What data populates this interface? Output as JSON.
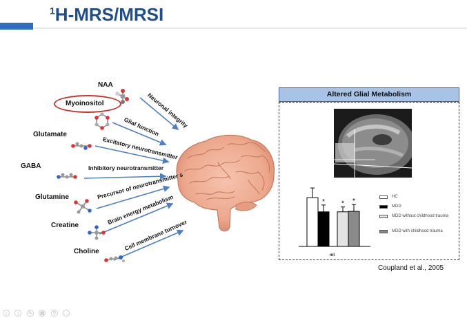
{
  "slide": {
    "title_sup": "1",
    "title_main": "H-MRS/MRSI"
  },
  "metabolites": [
    {
      "name": "NAA",
      "function": "Neuronal integrity"
    },
    {
      "name": "Myoinositol",
      "function": "Glial function"
    },
    {
      "name": "Glutamate",
      "function": "Excitatory neurotransmitter"
    },
    {
      "name": "GABA",
      "function": "Inhibitory neurotransmitter"
    },
    {
      "name": "Glutamine",
      "function": "Precursor of neurotransmitter s"
    },
    {
      "name": "Creatine",
      "function": "Brain energy metabolism"
    },
    {
      "name": "Choline",
      "function": "Cell membrane turnover"
    }
  ],
  "panel": {
    "header": "Altered Glial Metabolism",
    "xlabel": "mI",
    "significance_mark": "*"
  },
  "chart_data": {
    "type": "bar",
    "categories": [
      "mI"
    ],
    "series": [
      {
        "name": "HC",
        "values": [
          1.0
        ],
        "error": [
          0.2
        ],
        "color": "#ffffff"
      },
      {
        "name": "MDD",
        "values": [
          0.71
        ],
        "error": [
          0.14
        ],
        "color": "#000000"
      },
      {
        "name": "MDD without childhood trauma",
        "values": [
          0.71
        ],
        "error": [
          0.1
        ],
        "color": "#e3e3e3"
      },
      {
        "name": "MDD with childhood trauma",
        "values": [
          0.72
        ],
        "error": [
          0.14
        ],
        "color": "#8a8a8a"
      }
    ],
    "significant": [
      false,
      true,
      true,
      true
    ],
    "ylim": [
      0,
      1.3
    ]
  },
  "legend": [
    {
      "label": "HC",
      "color": "#ffffff"
    },
    {
      "label": "MDD",
      "color": "#000000"
    },
    {
      "label": "MDD without childhood trauma",
      "color": "#e3e3e3"
    },
    {
      "label": "MDD with childhood trauma",
      "color": "#8a8a8a"
    }
  ],
  "citation": "Coupland et al., 2005",
  "nav": [
    "prev-icon",
    "next-icon",
    "pen-icon",
    "view-icon",
    "zoom-icon",
    "menu-icon"
  ]
}
